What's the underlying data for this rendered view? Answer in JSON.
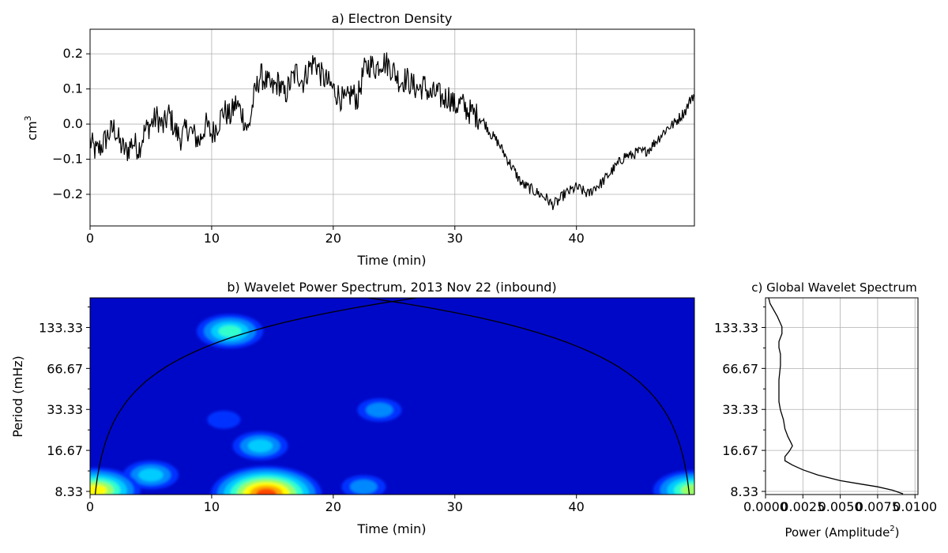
{
  "chart_data": [
    {
      "type": "line",
      "title": "a) Electron Density",
      "xlabel": "Time (min)",
      "ylabel": "cm",
      "ylabel_superscript": "3",
      "xlim": [
        0,
        49.7
      ],
      "ylim": [
        -0.29,
        0.27
      ],
      "xticks": [
        0,
        10,
        20,
        30,
        40
      ],
      "xtick_labels": [
        "0",
        "10",
        "20",
        "30",
        "40"
      ],
      "yticks": [
        -0.2,
        -0.1,
        0.0,
        0.1,
        0.2
      ],
      "ytick_labels": [
        "−0.2",
        "−0.1",
        "0.0",
        "0.1",
        "0.2"
      ],
      "grid": true,
      "line_color": "#000000",
      "series": [
        {
          "x": [
            0,
            0.5,
            1,
            1.5,
            2,
            2.5,
            3,
            3.5,
            4,
            4.5,
            5,
            5.5,
            6,
            6.5,
            7,
            7.5,
            8,
            8.5,
            9,
            9.5,
            10,
            10.5,
            11,
            11.5,
            12,
            12.5,
            13,
            13.5,
            14,
            14.5,
            15,
            15.5,
            16,
            16.5,
            17,
            17.5,
            18,
            18.5,
            19,
            19.5,
            20,
            20.5,
            21,
            21.5,
            22,
            22.5,
            23,
            23.5,
            24,
            24.5,
            25,
            25.5,
            26,
            26.5,
            27,
            27.5,
            28,
            28.5,
            29,
            29.5,
            30,
            30.5,
            31,
            31.5,
            32,
            32.5,
            33,
            33.5,
            34,
            34.5,
            35,
            35.5,
            36,
            36.5,
            37,
            37.5,
            38,
            38.5,
            39,
            39.5,
            40,
            40.5,
            41,
            41.5,
            42,
            42.5,
            43,
            43.5,
            44,
            44.5,
            45,
            45.5,
            46,
            46.5,
            47,
            47.5,
            48,
            48.5,
            49,
            49.5
          ],
          "values": [
            -0.05,
            -0.08,
            -0.06,
            -0.03,
            -0.01,
            -0.06,
            -0.08,
            -0.05,
            -0.07,
            -0.02,
            0.0,
            0.02,
            -0.01,
            0.03,
            -0.02,
            -0.04,
            -0.01,
            -0.03,
            -0.05,
            0.0,
            -0.03,
            0.0,
            0.04,
            0.02,
            0.06,
            0.03,
            -0.02,
            0.08,
            0.14,
            0.12,
            0.1,
            0.12,
            0.08,
            0.12,
            0.15,
            0.12,
            0.16,
            0.18,
            0.14,
            0.12,
            0.1,
            0.08,
            0.06,
            0.09,
            0.07,
            0.15,
            0.17,
            0.16,
            0.18,
            0.17,
            0.15,
            0.12,
            0.13,
            0.11,
            0.1,
            0.11,
            0.08,
            0.09,
            0.07,
            0.08,
            0.05,
            0.06,
            0.04,
            0.03,
            0.02,
            0.0,
            -0.03,
            -0.05,
            -0.08,
            -0.11,
            -0.14,
            -0.17,
            -0.18,
            -0.19,
            -0.2,
            -0.21,
            -0.23,
            -0.22,
            -0.2,
            -0.19,
            -0.18,
            -0.19,
            -0.2,
            -0.18,
            -0.17,
            -0.15,
            -0.13,
            -0.11,
            -0.09,
            -0.09,
            -0.08,
            -0.08,
            -0.07,
            -0.05,
            -0.03,
            -0.01,
            0.0,
            0.02,
            0.04,
            0.08
          ]
        }
      ]
    },
    {
      "type": "heatmap",
      "title": "b) Wavelet Power Spectrum, 2013 Nov 22 (inbound)",
      "xlabel": "Time (min)",
      "ylabel": "Period (mHz)",
      "xlim": [
        0,
        49.7
      ],
      "xticks": [
        0,
        10,
        20,
        30,
        40
      ],
      "xtick_labels": [
        "0",
        "10",
        "20",
        "30",
        "40"
      ],
      "ytick_labels": [
        "133.33",
        "66.67",
        "33.33",
        "16.67",
        "8.33"
      ],
      "ytick_values": [
        133.33,
        66.67,
        33.33,
        16.67,
        8.33
      ],
      "log_y": true,
      "colormap": "jet",
      "background_color": "#0008c8",
      "features": [
        {
          "t": 11.5,
          "period": 125,
          "level": 4
        },
        {
          "t": 14,
          "period": 18,
          "level": 3
        },
        {
          "t": 14.5,
          "period": 8,
          "level": 8
        },
        {
          "t": 5,
          "period": 11,
          "level": 3
        },
        {
          "t": 0.5,
          "period": 8.5,
          "level": 6
        },
        {
          "t": 49.5,
          "period": 8.5,
          "level": 5
        },
        {
          "t": 23.8,
          "period": 33,
          "level": 2
        },
        {
          "t": 22.5,
          "period": 9,
          "level": 2
        },
        {
          "t": 11,
          "period": 28,
          "level": 1
        }
      ]
    },
    {
      "type": "line",
      "title": "c) Global Wavelet Spectrum",
      "xlabel": "Power (Amplitude",
      "xlabel_superscript": "2",
      "xlabel_suffix": ")",
      "xlim": [
        0,
        0.0102
      ],
      "xticks": [
        0.0,
        0.0025,
        0.005,
        0.0075,
        0.01
      ],
      "xtick_labels": [
        "0.0000",
        "0.0025",
        "0.0050",
        "0.0075",
        "0.0100"
      ],
      "ytick_labels": [
        "133.33",
        "66.67",
        "33.33",
        "16.67",
        "8.33"
      ],
      "ytick_values": [
        133.33,
        66.67,
        33.33,
        16.67,
        8.33
      ],
      "log_y": true,
      "grid": true,
      "series": [
        {
          "period": [
            260,
            200,
            160,
            135,
            120,
            105,
            95,
            85,
            70,
            55,
            45,
            38,
            33,
            28,
            24,
            21,
            19,
            18,
            16.5,
            15,
            14,
            13,
            12,
            11,
            10,
            9.5,
            9,
            8.5,
            8.0
          ],
          "values": [
            5e-05,
            0.0003,
            0.0008,
            0.0011,
            0.0011,
            0.0009,
            0.0009,
            0.001,
            0.001,
            0.0009,
            0.0009,
            0.0009,
            0.001,
            0.0012,
            0.0013,
            0.0015,
            0.0017,
            0.0018,
            0.0016,
            0.0013,
            0.0013,
            0.0018,
            0.0025,
            0.0035,
            0.005,
            0.0062,
            0.0075,
            0.0085,
            0.0092
          ]
        }
      ]
    }
  ]
}
